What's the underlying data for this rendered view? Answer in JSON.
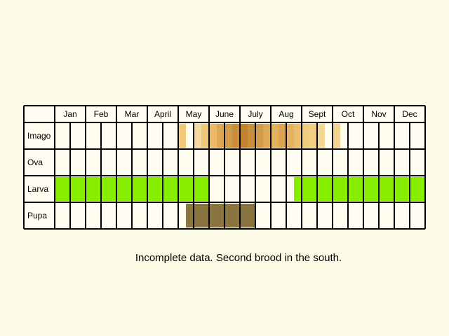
{
  "chart_data": {
    "type": "table",
    "months": [
      "Jan",
      "Feb",
      "Mar",
      "April",
      "May",
      "June",
      "July",
      "Aug",
      "Sept",
      "Oct",
      "Nov",
      "Dec"
    ],
    "stages": [
      {
        "label": "Imago",
        "note": "abundance shown by shade intensity, by week",
        "cells": [
          {
            "week": 17,
            "color": "#f1c87a"
          },
          {
            "week": 19,
            "color": "#f4d89e"
          },
          {
            "week": 20,
            "color": "#eec87a"
          },
          {
            "week": 21,
            "color": "#e9b965"
          },
          {
            "week": 22,
            "color": "#dea754"
          },
          {
            "week": 23,
            "color": "#d39a4a"
          },
          {
            "week": 24,
            "color": "#c98d3b"
          },
          {
            "week": 25,
            "color": "#c38430"
          },
          {
            "week": 26,
            "color": "#c8903e"
          },
          {
            "week": 27,
            "color": "#d39c4b"
          },
          {
            "week": 28,
            "color": "#ddab58"
          },
          {
            "week": 29,
            "color": "#e2b25d"
          },
          {
            "week": 30,
            "color": "#dba553"
          },
          {
            "week": 31,
            "color": "#e3b361"
          },
          {
            "week": 32,
            "color": "#e9bf6d"
          },
          {
            "week": 33,
            "color": "#f0cc7e"
          },
          {
            "week": 34,
            "color": "#f2cf82"
          },
          {
            "week": 35,
            "color": "#f5d693"
          },
          {
            "week": 37,
            "color": "#f3d290"
          }
        ]
      },
      {
        "label": "Ova",
        "cells": []
      },
      {
        "label": "Larva",
        "color": "#88ee00",
        "weeks": [
          1,
          2,
          3,
          4,
          5,
          6,
          7,
          8,
          9,
          10,
          11,
          12,
          13,
          14,
          15,
          16,
          17,
          18,
          19,
          20,
          32,
          33,
          34,
          35,
          36,
          37,
          38,
          39,
          40,
          41,
          42,
          43,
          44,
          45,
          46,
          47,
          48
        ]
      },
      {
        "label": "Pupa",
        "color": "#8a7440",
        "weeks": [
          18,
          19,
          20,
          21,
          22,
          23,
          24,
          25,
          26
        ]
      }
    ]
  },
  "caption": "Incomplete data. Second brood in the south."
}
